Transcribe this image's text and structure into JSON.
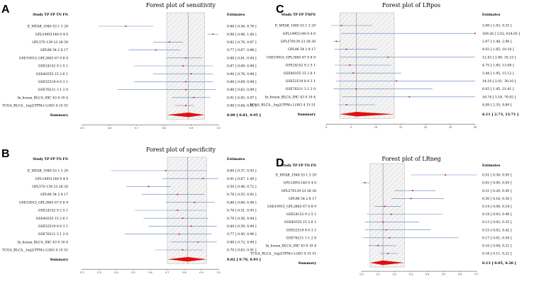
{
  "chart_data": [
    {
      "panel": "A",
      "type": "forest",
      "title": "Forest plot of sensitivity",
      "header": {
        "study": "Study TP FP TN FN",
        "estimates": "Estimates"
      },
      "xlim": [
        0.5,
        1.0
      ],
      "xticks": [
        "0.5",
        "0.6",
        "0.7",
        "0.8",
        "0.9",
        "1.0"
      ],
      "pooled_line": 0.89,
      "band": [
        0.81,
        0.95
      ],
      "studies": [
        {
          "label": "E_MTAB_1940 53  1  3 29",
          "est": 0.66,
          "lo": 0.56,
          "hi": 0.76,
          "text": "0.66 [ 0.56, 0.76 ]"
        },
        {
          "label": "GPL14951140  0   4  0",
          "est": 0.98,
          "lo": 0.96,
          "hi": 1.0,
          "text": "0.98 [ 0.96, 1.00 ]"
        },
        {
          "label": "GPL570 139 23  28 30",
          "est": 0.82,
          "lo": 0.76,
          "hi": 0.87,
          "text": "0.82 [ 0.76, 0.87 ]"
        },
        {
          "label": "GPL96  54  2   8 17",
          "est": 0.77,
          "lo": 0.67,
          "hi": 0.86,
          "text": "0.77 [ 0.67, 0.86 ]"
        },
        {
          "label": "GSE19915_GPL3883 67  0  8  9",
          "est": 0.88,
          "lo": 0.81,
          "hi": 0.94,
          "text": "0.88 [ 0.81, 0.94 ]"
        },
        {
          "label": "GSE24152  9  2  5  1",
          "est": 0.87,
          "lo": 0.69,
          "hi": 0.98,
          "text": "0.87 [ 0.69, 0.98 ]"
        },
        {
          "label": "GSE40355  15  2  6  1",
          "est": 0.9,
          "lo": 0.76,
          "hi": 0.98,
          "text": "0.90 [ 0.76, 0.98 ]"
        },
        {
          "label": "GSE52519  8  0  3  1",
          "est": 0.88,
          "lo": 0.69,
          "hi": 0.98,
          "text": "0.88 [ 0.69, 0.98 ]"
        },
        {
          "label": "GSE76211  3  1  2  0",
          "est": 0.88,
          "lo": 0.63,
          "hi": 0.99,
          "text": "0.88 [ 0.63, 0.99 ]"
        },
        {
          "label": "In_house_BLCA_IHC 43  0  10  4",
          "est": 0.91,
          "lo": 0.83,
          "hi": 0.97,
          "text": "0.91 [ 0.83, 0.97 ]"
        },
        {
          "label": "TCGA_BLCA__log2(TPM+1)363  4  15 51",
          "est": 0.88,
          "lo": 0.84,
          "hi": 0.91,
          "text": "0.88 [ 0.84, 0.91 ]"
        }
      ],
      "summary": {
        "label": "Summary",
        "est": 0.89,
        "lo": 0.81,
        "hi": 0.95,
        "text": "0.89 [ 0.81, 0.95 ]"
      }
    },
    {
      "panel": "B",
      "type": "forest",
      "title": "Forest plot of specificity",
      "header": {
        "study": "Study TP FP TN FN",
        "estimates": "Estimates"
      },
      "xlim": [
        0.2,
        1.0
      ],
      "xticks": [
        "0.2",
        "0.3",
        "0.4",
        "0.5",
        "0.6",
        "0.7",
        "0.8",
        "0.9",
        "1.0"
      ],
      "pooled_line": 0.82,
      "band": [
        0.7,
        0.93
      ],
      "studies": [
        {
          "label": "E_MTAB_1940 53  1  3 29",
          "est": 0.69,
          "lo": 0.37,
          "hi": 0.93,
          "text": "0.69 [ 0.37, 0.93 ]"
        },
        {
          "label": "GPL14951140  0   4  0",
          "est": 0.91,
          "lo": 0.67,
          "hi": 1.0,
          "text": "0.91 [ 0.67, 1.00 ]"
        },
        {
          "label": "GPL570 139 23  28 30",
          "est": 0.59,
          "lo": 0.46,
          "hi": 0.72,
          "text": "0.59 [ 0.46, 0.72 ]"
        },
        {
          "label": "GPL96  54  2   8 17",
          "est": 0.76,
          "lo": 0.55,
          "hi": 0.92,
          "text": "0.76 [ 0.55, 0.92 ]"
        },
        {
          "label": "GSE19915_GPL3883 67  0  8  9",
          "est": 0.86,
          "lo": 0.69,
          "hi": 0.98,
          "text": "0.86 [ 0.69, 0.98 ]"
        },
        {
          "label": "GSE24152  9  2  5  1",
          "est": 0.76,
          "lo": 0.51,
          "hi": 0.93,
          "text": "0.76 [ 0.51, 0.93 ]"
        },
        {
          "label": "GSE40355  15  2  6  1",
          "est": 0.79,
          "lo": 0.56,
          "hi": 0.94,
          "text": "0.79 [ 0.56, 0.94 ]"
        },
        {
          "label": "GSE52519  8  0  3  1",
          "est": 0.84,
          "lo": 0.59,
          "hi": 0.99,
          "text": "0.84 [ 0.59, 0.99 ]"
        },
        {
          "label": "GSE76211  3  1  2  0",
          "est": 0.77,
          "lo": 0.45,
          "hi": 0.96,
          "text": "0.77 [ 0.45, 0.96 ]"
        },
        {
          "label": "In_house_BLCA_IHC 43  0  10  4",
          "est": 0.88,
          "lo": 0.72,
          "hi": 0.99,
          "text": "0.88 [ 0.72, 0.99 ]"
        },
        {
          "label": "TCGA_BLCA__log2(TPM+1)363  4  15 51",
          "est": 0.79,
          "lo": 0.63,
          "hi": 0.91,
          "text": "0.79 [ 0.63, 0.91 ]"
        }
      ],
      "summary": {
        "label": "Summary",
        "est": 0.82,
        "lo": 0.7,
        "hi": 0.93,
        "text": "0.82 [ 0.70, 0.93 ]"
      }
    },
    {
      "panel": "C",
      "type": "forest",
      "title": "Forest plot of LRpos",
      "header": {
        "study": "Study TP FP TNFN",
        "estimates": "Estimates"
      },
      "xlim": [
        0,
        30
      ],
      "xticks": [
        "0",
        "5",
        "10",
        "15",
        "20",
        "25",
        "30"
      ],
      "pooled_line": 6.11,
      "band": [
        2.73,
        13.71
      ],
      "studies": [
        {
          "label": "E_MTAB_1940 53  1  3 29",
          "est": 3.09,
          "lo": 1.03,
          "hi": 9.33,
          "text": "3.09 [ 1.03,  9.33 ]"
        },
        {
          "label": "GPL14951140  0  4  0",
          "est": 109.26,
          "lo": 3.02,
          "hi": 614.05,
          "text": "109.26 [ 3.02, 614.05 ]"
        },
        {
          "label": "GPL570139 23 28 30",
          "est": 2.07,
          "lo": 1.48,
          "hi": 2.9,
          "text": "2.07 [ 1.48,  2.90 ]"
        },
        {
          "label": "GPL96 54  2  8 17",
          "est": 4.03,
          "lo": 1.65,
          "hi": 10.18,
          "text": "4.03 [ 1.65, 10.18 ]"
        },
        {
          "label": "GSE19915_GPL3883 67  0  8  9",
          "est": 12.43,
          "lo": 2.8,
          "hi": 35.15,
          "text": "12.43 [ 2.80, 35.15 ]"
        },
        {
          "label": "GSE24152  9  2  5  1",
          "est": 4.75,
          "lo": 1.65,
          "hi": 13.08,
          "text": "4.75 [ 1.65, 13.08 ]"
        },
        {
          "label": "GSE40355  15  2  6  1",
          "est": 5.44,
          "lo": 1.95,
          "hi": 15.12,
          "text": "5.44 [ 1.95, 15.12 ]"
        },
        {
          "label": "GSE52519  8  0  3  1",
          "est": 14.16,
          "lo": 2.01,
          "hi": 30.1,
          "text": "14.16 [ 2.01, 30.10 ]"
        },
        {
          "label": "GSE76211  3  1  2  0",
          "est": 6.03,
          "lo": 1.45,
          "hi": 21.41,
          "text": "6.03 [ 1.45, 21.41 ]"
        },
        {
          "label": "In_house_BLCA_IHC  43  0  10  4",
          "est": 16.74,
          "lo": 3.18,
          "hi": 70.02,
          "text": "16.74 [ 3.18, 70.02 ]"
        },
        {
          "label": "TCGA_BLCA__log2(TPM+1)363  4  15 51",
          "est": 4.09,
          "lo": 2.35,
          "hi": 9.89,
          "text": "4.09 [ 2.35,  9.89 ]"
        }
      ],
      "summary": {
        "label": "Summary",
        "est": 6.11,
        "lo": 2.73,
        "hi": 13.71,
        "text": "6.11 [ 2.73, 13.71 ]"
      }
    },
    {
      "panel": "D",
      "type": "forest",
      "title": "Forest plot of LRneg",
      "header": {
        "study": "Study TP FP TN FN",
        "estimates": "Estimates"
      },
      "xlim": [
        0.0,
        0.7
      ],
      "xticks": [
        "0.0",
        "0.1",
        "0.2",
        "0.3",
        "0.4",
        "0.5",
        "0.6",
        "0.7"
      ],
      "pooled_line": 0.13,
      "band": [
        0.05,
        0.26
      ],
      "studies": [
        {
          "label": "E_MTAB_1940  53  1  3  29",
          "est": 0.51,
          "lo": 0.3,
          "hi": 0.95,
          "text": "0.51 [ 0.30, 0.95 ]"
        },
        {
          "label": "GPL14951140  0  4  0",
          "est": 0.02,
          "lo": 0.0,
          "hi": 0.05,
          "text": "0.02 [ 0.00, 0.05 ]"
        },
        {
          "label": "GPL570139 23 28 30",
          "est": 0.31,
          "lo": 0.2,
          "hi": 0.45,
          "text": "0.31 [ 0.20, 0.45 ]"
        },
        {
          "label": "GPL96  54  2  8  17",
          "est": 0.3,
          "lo": 0.18,
          "hi": 0.5,
          "text": "0.30 [ 0.18, 0.50 ]"
        },
        {
          "label": "GSE19915_GPL3883 67  0  8  9",
          "est": 0.14,
          "lo": 0.08,
          "hi": 0.24,
          "text": "0.14 [ 0.08, 0.24 ]"
        },
        {
          "label": "GSE24152   9  2  5  1",
          "est": 0.18,
          "lo": 0.03,
          "hi": 0.49,
          "text": "0.18 [ 0.03, 0.49 ]"
        },
        {
          "label": "GSE40355  15  2  6  1",
          "est": 0.13,
          "lo": 0.02,
          "hi": 0.35,
          "text": "0.13 [ 0.02, 0.35 ]"
        },
        {
          "label": "GSE52519   8  0  3  1",
          "est": 0.15,
          "lo": 0.02,
          "hi": 0.42,
          "text": "0.15 [ 0.02, 0.42 ]"
        },
        {
          "label": "GSE76211   3  1  2  0",
          "est": 0.17,
          "lo": 0.01,
          "hi": 0.59,
          "text": "0.17 [ 0.01, 0.59 ]"
        },
        {
          "label": "In_house_BLCA_IHC  43  0  10  4",
          "est": 0.1,
          "lo": 0.04,
          "hi": 0.21,
          "text": "0.10 [ 0.04, 0.21 ]"
        },
        {
          "label": "TCGA_BLCA__log2(TPM+1)363  4  15  51",
          "est": 0.16,
          "lo": 0.11,
          "hi": 0.22,
          "text": "0.16 [ 0.11, 0.22 ]"
        }
      ],
      "summary": {
        "label": "Summary",
        "est": 0.13,
        "lo": 0.05,
        "hi": 0.26,
        "text": "0.13 [ 0.05, 0.26 ]"
      }
    }
  ]
}
